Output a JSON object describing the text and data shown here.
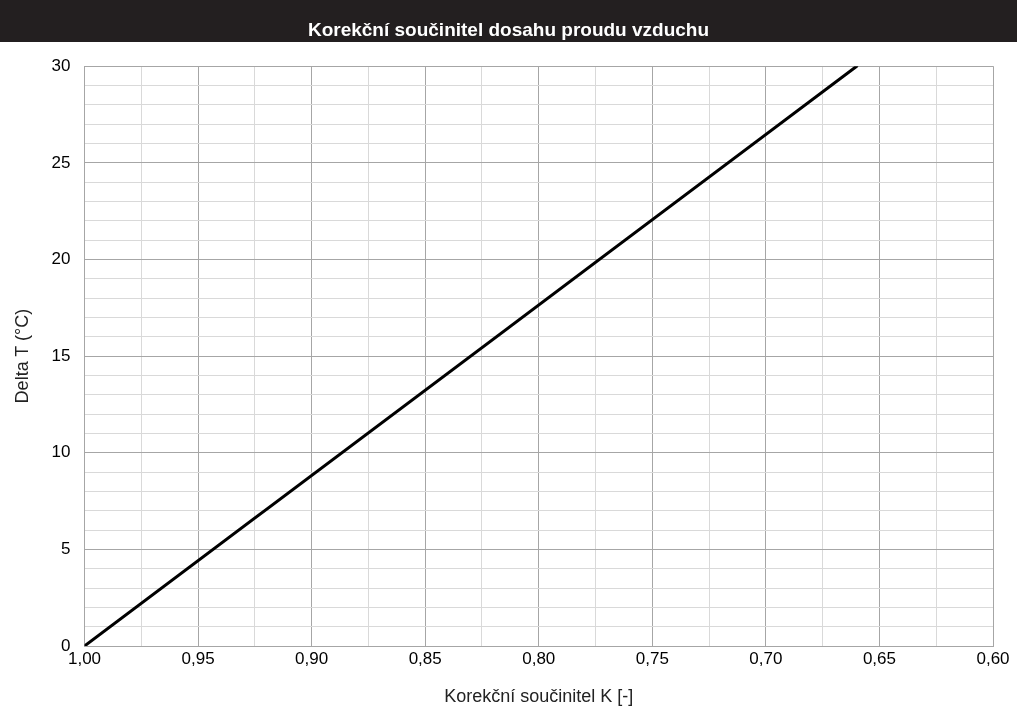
{
  "chart_data": {
    "type": "line",
    "title": "Korekční součinitel dosahu proudu vzduchu",
    "xlabel": "Korekční součinitel K [-]",
    "ylabel": "Delta T (°C)",
    "x": [
      1.0,
      0.66
    ],
    "series": [
      {
        "color": "#000000",
        "values": [
          0,
          30
        ]
      }
    ],
    "xlim": [
      1.0,
      0.6
    ],
    "xticks": [
      {
        "value": 1.0,
        "label": "1,00"
      },
      {
        "value": 0.975,
        "label": null
      },
      {
        "value": 0.95,
        "label": "0,95"
      },
      {
        "value": 0.925,
        "label": null
      },
      {
        "value": 0.9,
        "label": "0,90"
      },
      {
        "value": 0.875,
        "label": null
      },
      {
        "value": 0.85,
        "label": "0,85"
      },
      {
        "value": 0.825,
        "label": null
      },
      {
        "value": 0.8,
        "label": "0,80"
      },
      {
        "value": 0.775,
        "label": null
      },
      {
        "value": 0.75,
        "label": "0,75"
      },
      {
        "value": 0.725,
        "label": null
      },
      {
        "value": 0.7,
        "label": "0,70"
      },
      {
        "value": 0.675,
        "label": null
      },
      {
        "value": 0.65,
        "label": "0,65"
      },
      {
        "value": 0.625,
        "label": null
      },
      {
        "value": 0.6,
        "label": "0,60"
      }
    ],
    "ylim": [
      0,
      30
    ],
    "yticks": [
      0,
      {
        "value": 1,
        "label": null
      },
      {
        "value": 2,
        "label": null
      },
      {
        "value": 3,
        "label": null
      },
      {
        "value": 4,
        "label": null
      },
      5,
      {
        "value": 6,
        "label": null
      },
      {
        "value": 7,
        "label": null
      },
      {
        "value": 8,
        "label": null
      },
      {
        "value": 9,
        "label": null
      },
      10,
      {
        "value": 11,
        "label": null
      },
      {
        "value": 12,
        "label": null
      },
      {
        "value": 13,
        "label": null
      },
      {
        "value": 14,
        "label": null
      },
      15,
      {
        "value": 16,
        "label": null
      },
      {
        "value": 17,
        "label": null
      },
      {
        "value": 18,
        "label": null
      },
      {
        "value": 19,
        "label": null
      },
      20,
      {
        "value": 21,
        "label": null
      },
      {
        "value": 22,
        "label": null
      },
      {
        "value": 23,
        "label": null
      },
      {
        "value": 24,
        "label": null
      },
      25,
      {
        "value": 26,
        "label": null
      },
      {
        "value": 27,
        "label": null
      },
      {
        "value": 28,
        "label": null
      },
      {
        "value": 29,
        "label": null
      },
      30
    ],
    "grid": true,
    "marker": "none",
    "line_style": "solid",
    "legend": false
  }
}
